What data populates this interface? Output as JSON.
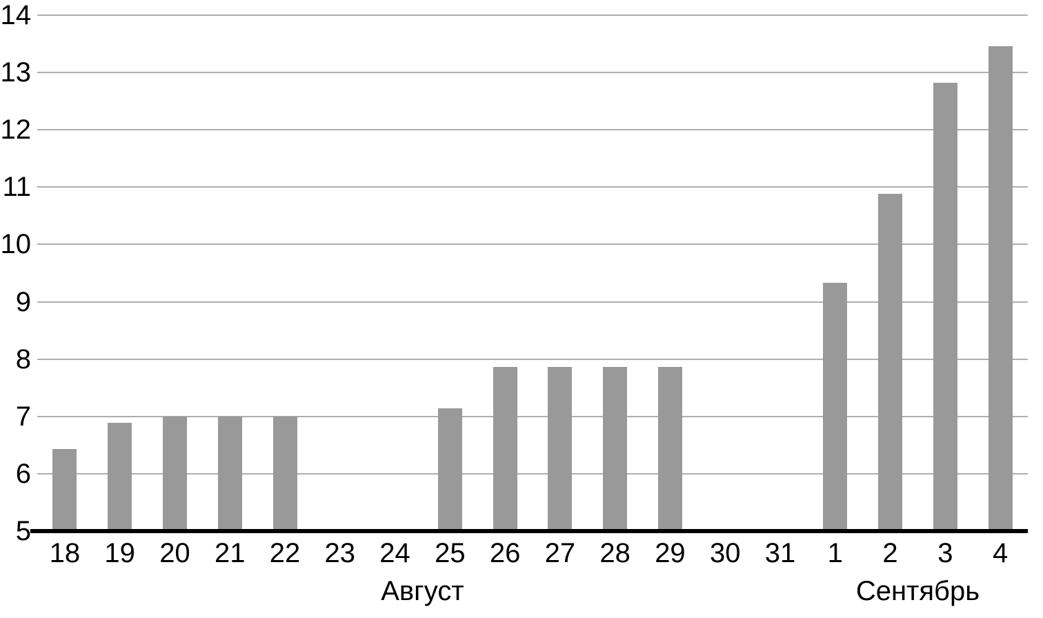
{
  "chart_data": {
    "type": "bar",
    "categories": [
      "18",
      "19",
      "20",
      "21",
      "22",
      "23",
      "24",
      "25",
      "26",
      "27",
      "28",
      "29",
      "30",
      "31",
      "1",
      "2",
      "3",
      "4"
    ],
    "values": [
      6.43,
      6.89,
      7.0,
      7.0,
      7.0,
      null,
      null,
      7.14,
      7.86,
      7.86,
      7.86,
      7.86,
      null,
      null,
      9.33,
      10.88,
      12.82,
      13.46
    ],
    "month_groups": [
      {
        "label": "Август",
        "from_index": 0,
        "to_index": 13
      },
      {
        "label": "Сентябрь",
        "from_index": 14,
        "to_index": 17
      }
    ],
    "yticks": [
      5,
      6,
      7,
      8,
      9,
      10,
      11,
      12,
      13,
      14
    ],
    "ylim": [
      5,
      14
    ],
    "grid": "horizontal-only",
    "legend": "none",
    "colors": {
      "bar": "#999999",
      "gridline": "#aeaeae",
      "axis_line": "#000000",
      "text": "#000000",
      "background": "#ffffff"
    }
  }
}
